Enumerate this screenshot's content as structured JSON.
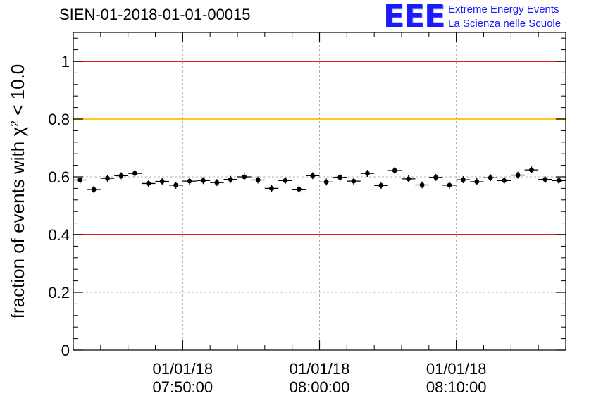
{
  "title": "SIEN-01-2018-01-01-00015",
  "logo": {
    "mark": "EEE",
    "line1": "Extreme Energy Events",
    "line2": "La Scienza nelle Scuole",
    "color": "#1a1aff"
  },
  "chart_data": {
    "type": "scatter",
    "title": "SIEN-01-2018-01-01-00015",
    "ylabel": "fraction of events with χ² < 10.0",
    "ylabel_parts": {
      "prefix": "fraction of events with ",
      "chi": "χ",
      "sup": "2",
      "suffix": " < 10.0"
    },
    "xlabel": "",
    "ylim": [
      0,
      1.1
    ],
    "y_ticks": [
      0,
      0.2,
      0.4,
      0.6,
      0.8,
      1
    ],
    "y_tick_labels": [
      "0",
      "0.2",
      "0.4",
      "0.6",
      "0.8",
      "1"
    ],
    "xlim_minutes": [
      -16,
      20
    ],
    "x_ticks_minutes": [
      -8,
      2,
      12
    ],
    "x_tick_labels": [
      {
        "date": "01/01/18",
        "time": "07:50:00"
      },
      {
        "date": "01/01/18",
        "time": "08:00:00"
      },
      {
        "date": "01/01/18",
        "time": "08:10:00"
      }
    ],
    "grid": true,
    "reference_lines": [
      {
        "y": 1.0,
        "color": "#e00000"
      },
      {
        "y": 0.8,
        "color": "#ffc000"
      },
      {
        "y": 0.4,
        "color": "#e00000"
      }
    ],
    "bin_width_minutes": 1,
    "x": [
      -15.5,
      -14.5,
      -13.5,
      -12.5,
      -11.5,
      -10.5,
      -9.5,
      -8.5,
      -7.5,
      -6.5,
      -5.5,
      -4.5,
      -3.5,
      -2.5,
      -1.5,
      -0.5,
      0.5,
      1.5,
      2.5,
      3.5,
      4.5,
      5.5,
      6.5,
      7.5,
      8.5,
      9.5,
      10.5,
      11.5,
      12.5,
      13.5,
      14.5,
      15.5,
      16.5,
      17.5,
      18.5,
      19.5
    ],
    "values": [
      0.589,
      0.556,
      0.595,
      0.604,
      0.612,
      0.577,
      0.584,
      0.571,
      0.585,
      0.587,
      0.58,
      0.591,
      0.6,
      0.589,
      0.56,
      0.587,
      0.557,
      0.604,
      0.582,
      0.598,
      0.585,
      0.612,
      0.57,
      0.622,
      0.593,
      0.572,
      0.598,
      0.571,
      0.59,
      0.583,
      0.597,
      0.587,
      0.606,
      0.624,
      0.591,
      0.587
    ],
    "error": 0.012,
    "marker_color": "#000000"
  }
}
